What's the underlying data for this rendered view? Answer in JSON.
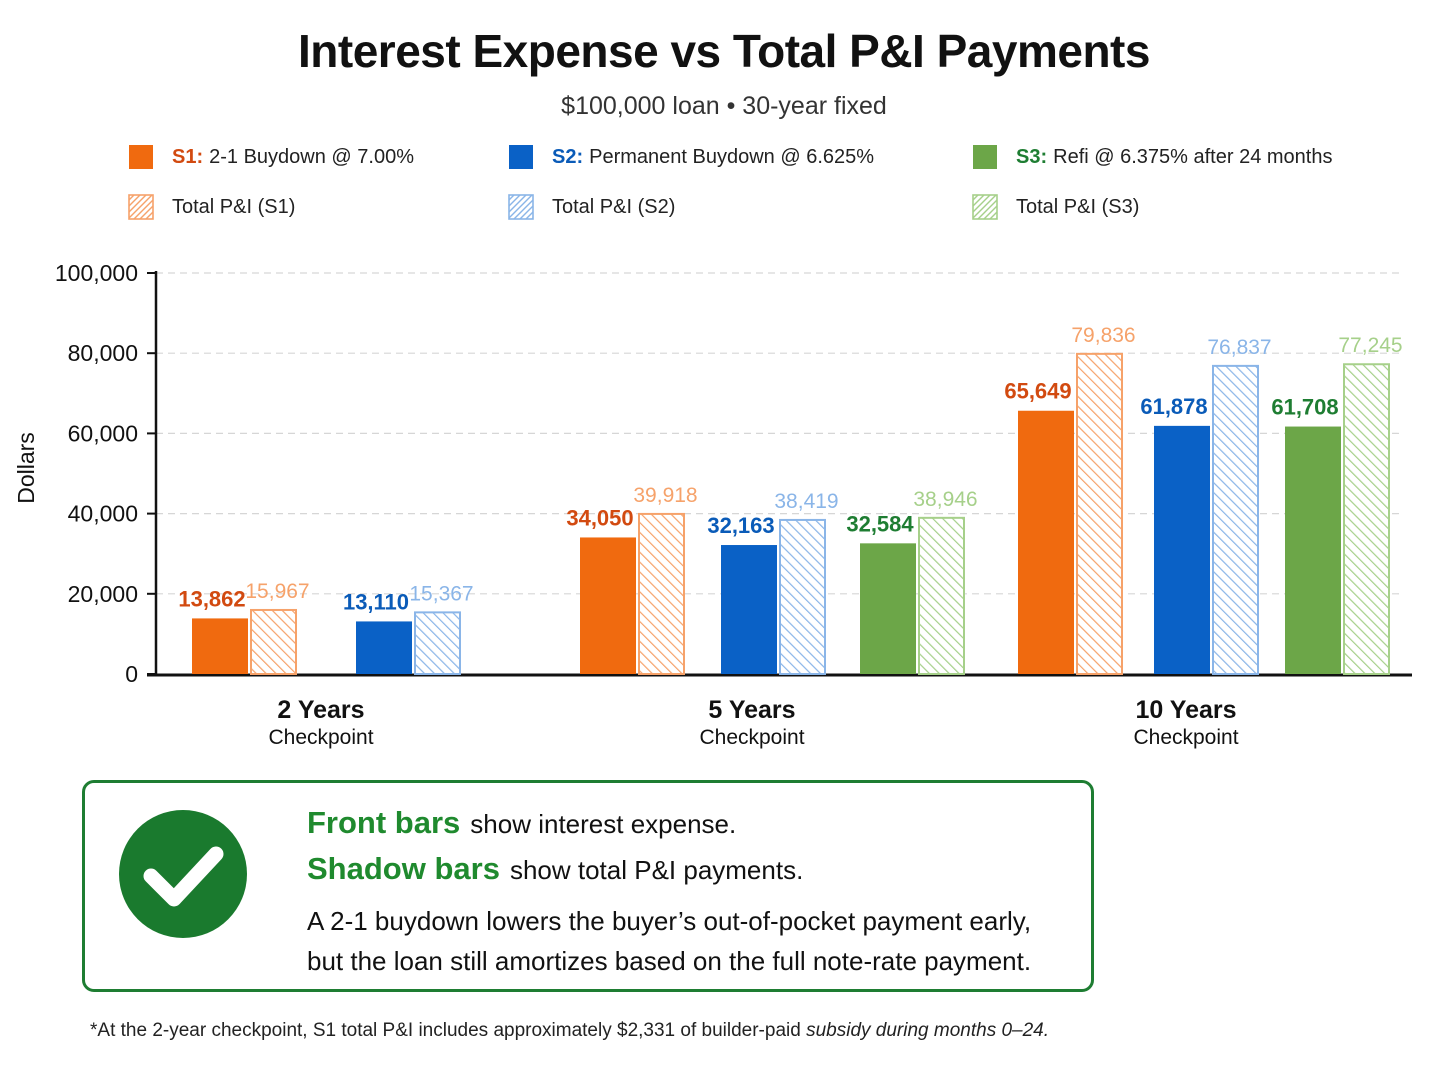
{
  "title": "Interest Expense vs Total P&I Payments",
  "subtitle": "$100,000 loan • 30-year fixed",
  "colors": {
    "s1": "#f06a0f",
    "s2": "#0a61c6",
    "s3": "#6ca648",
    "s1_label": "#d24a10",
    "s2_label": "#0a5bb8",
    "s3_label": "#1e7d32",
    "s1_shadow": "#f6a26a",
    "s2_shadow": "#8ab5e8",
    "s3_shadow": "#a6d08a",
    "callout_border": "#1e7d32",
    "callout_heading": "#1f8a2e"
  },
  "legend": [
    {
      "key": "s1",
      "prefix": "S1:",
      "label": "2-1 Buydown @ 7.00%",
      "style": "solid"
    },
    {
      "key": "s2",
      "prefix": "S2:",
      "label": "Permanent Buydown @ 6.625%",
      "style": "solid"
    },
    {
      "key": "s3",
      "prefix": "S3:",
      "label": "Refi @ 6.375% after 24 months",
      "style": "solid"
    },
    {
      "key": "s1",
      "prefix": "",
      "label": "Total P&I (S1)",
      "style": "hatched"
    },
    {
      "key": "s2",
      "prefix": "",
      "label": "Total P&I (S2)",
      "style": "hatched"
    },
    {
      "key": "s3",
      "prefix": "",
      "label": "Total P&I (S3)",
      "style": "hatched"
    }
  ],
  "chart_data": {
    "type": "bar",
    "ylabel": "Dollars",
    "ylim": [
      0,
      100000
    ],
    "yticks": [
      0,
      20000,
      40000,
      60000,
      80000,
      100000
    ],
    "ytick_labels": [
      "0",
      "20,000",
      "40,000",
      "60,000",
      "80,000",
      "100,000"
    ],
    "grid": true,
    "categories": [
      {
        "name": "2 Years",
        "sub": "Checkpoint"
      },
      {
        "name": "5 Years",
        "sub": "Checkpoint"
      },
      {
        "name": "10 Years",
        "sub": "Checkpoint"
      }
    ],
    "groups": [
      [
        {
          "series": "s1",
          "interest": 13862,
          "interest_label": "13,862",
          "total": 15967,
          "total_label": "15,967"
        },
        {
          "series": "s2",
          "interest": 13110,
          "interest_label": "13,110",
          "total": 15367,
          "total_label": "15,367"
        }
      ],
      [
        {
          "series": "s1",
          "interest": 34050,
          "interest_label": "34,050",
          "total": 39918,
          "total_label": "39,918"
        },
        {
          "series": "s2",
          "interest": 32163,
          "interest_label": "32,163",
          "total": 38419,
          "total_label": "38,419"
        },
        {
          "series": "s3",
          "interest": 32584,
          "interest_label": "32,584",
          "total": 38946,
          "total_label": "38,946"
        }
      ],
      [
        {
          "series": "s1",
          "interest": 65649,
          "interest_label": "65,649",
          "total": 79836,
          "total_label": "79,836"
        },
        {
          "series": "s2",
          "interest": 61878,
          "interest_label": "61,878",
          "total": 76837,
          "total_label": "76,837"
        },
        {
          "series": "s3",
          "interest": 61708,
          "interest_label": "61,708",
          "total": 77245,
          "total_label": "77,245"
        }
      ]
    ]
  },
  "callout": {
    "front_heading": "Front bars",
    "front_text": "show interest expense.",
    "shadow_heading": "Shadow bars",
    "shadow_text": "show total P&I payments.",
    "body_line1": "A 2-1 buydown lowers the buyer’s out-of-pocket payment early,",
    "body_line2": "but the loan still amortizes based on the full note-rate payment."
  },
  "footnote_main": "*At the 2-year checkpoint, S1 total P&I includes approximately $2,331 of builder-paid ",
  "footnote_italic": "subsidy during months 0–24."
}
